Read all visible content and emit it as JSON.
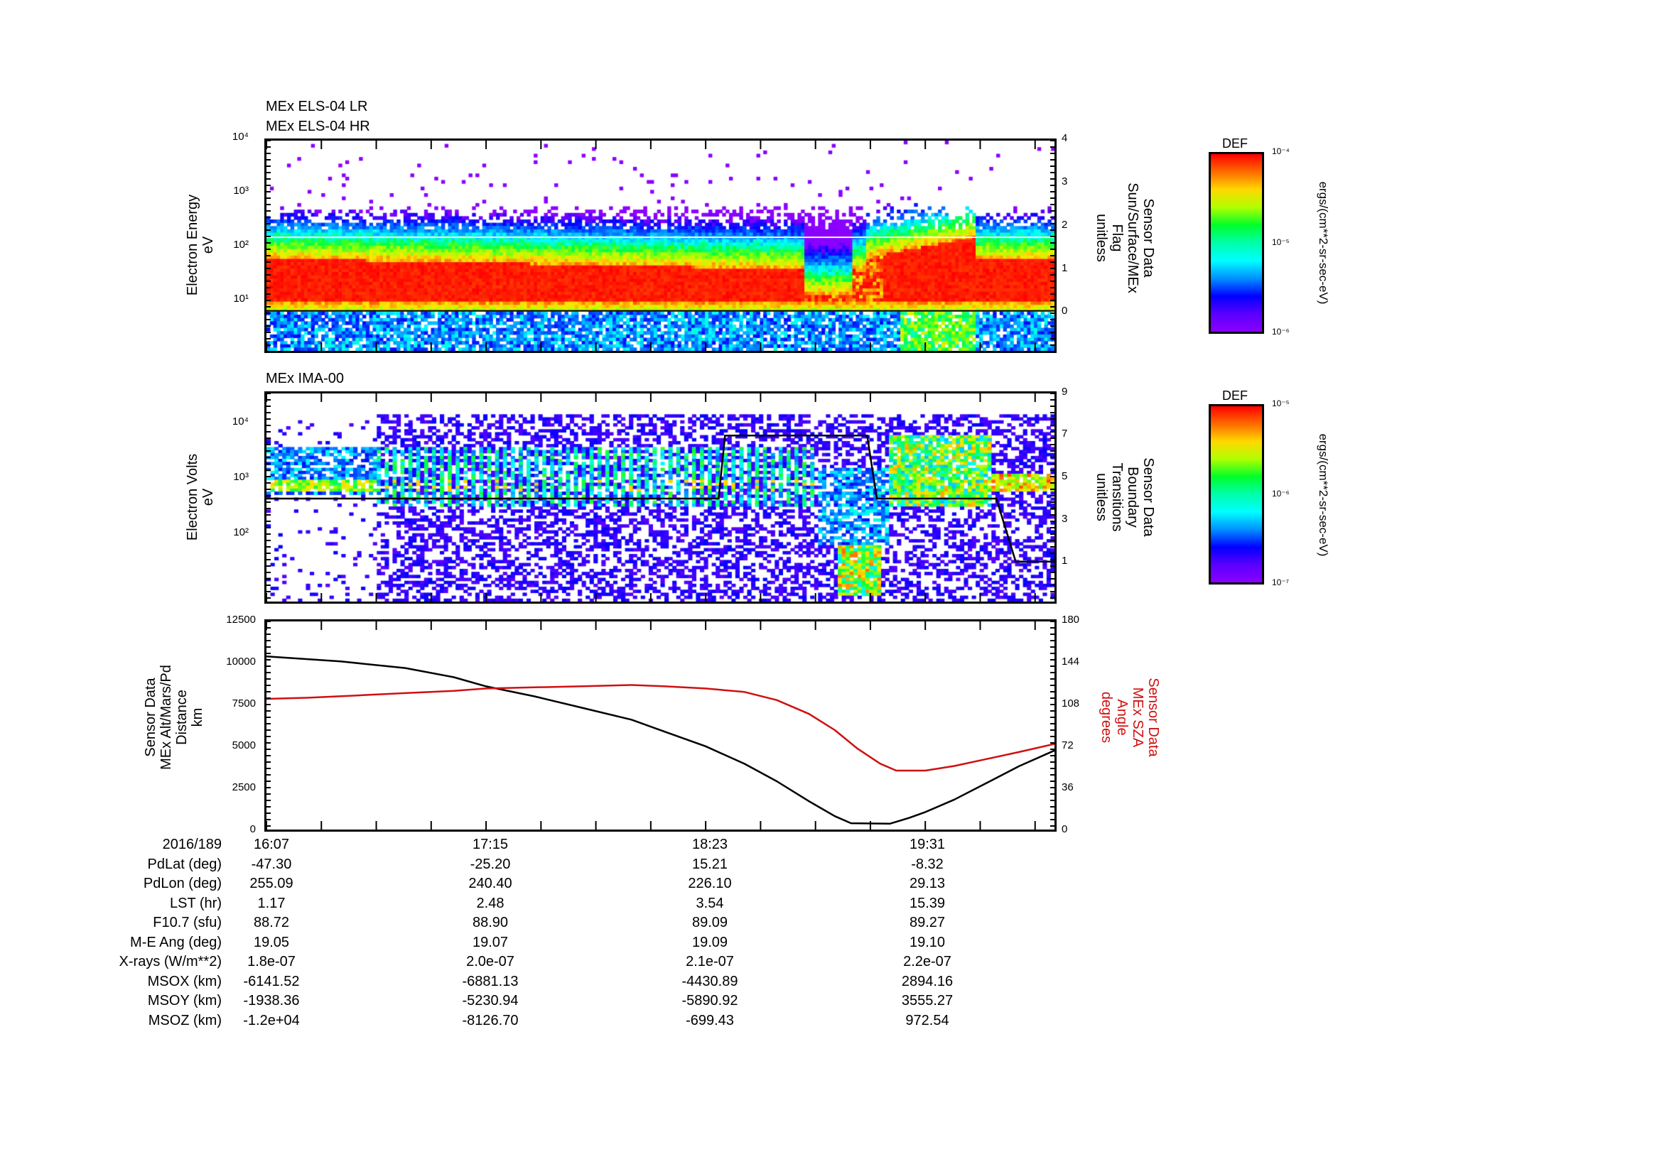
{
  "panel1": {
    "titles": [
      "MEx ELS-04 LR",
      "MEx ELS-04 HR"
    ],
    "ylabel": [
      "Electron Energy",
      "eV"
    ],
    "yticks": [
      "10⁴",
      "10³",
      "10²",
      "10¹"
    ],
    "ylabel_right": [
      "Sensor Data",
      "Sun/Surface/MEx",
      "Flag",
      "unitless"
    ],
    "yticks_right": [
      "4",
      "3",
      "2",
      "1",
      "0"
    ],
    "colorbar": {
      "title": "DEF",
      "ticks": [
        "10⁻⁴",
        "10⁻⁵",
        "10⁻⁶"
      ],
      "units": "ergs/(cm**2-sr-sec-eV)"
    }
  },
  "panel2": {
    "title": "MEx IMA-00",
    "ylabel": [
      "Electron Volts",
      "eV"
    ],
    "yticks": [
      "10⁴",
      "10³",
      "10²"
    ],
    "ylabel_right": [
      "Sensor Data",
      "Boundary",
      "Transitions",
      "unitless"
    ],
    "yticks_right": [
      "9",
      "7",
      "5",
      "3",
      "1"
    ],
    "colorbar": {
      "title": "DEF",
      "ticks": [
        "10⁻⁵",
        "10⁻⁶",
        "10⁻⁷"
      ],
      "units": "ergs/(cm**2-sr-sec-eV)"
    }
  },
  "panel3": {
    "ylabel": [
      "Sensor Data",
      "MEx Alt/Mars/Pd",
      "Distance",
      "km"
    ],
    "yticks": [
      "12500",
      "10000",
      "7500",
      "5000",
      "2500",
      "0"
    ],
    "ylabel_right": [
      "Sensor Data",
      "MEx SZA",
      "Angle",
      "degrees"
    ],
    "yticks_right": [
      "180",
      "144",
      "108",
      "72",
      "36",
      "0"
    ]
  },
  "colors": {
    "altitude": "#000000",
    "sza": "#d01010"
  },
  "chart_data": [
    {
      "type": "heatmap",
      "title": "MEx ELS-04 LR / MEx ELS-04 HR",
      "ylabel": "Electron Energy (eV)",
      "yscale": "log",
      "ylim": [
        1.1,
        10000
      ],
      "xlim": [
        "16:07",
        "20:11"
      ],
      "colorbar": {
        "label": "DEF ergs/(cm**2-sr-sec-eV)",
        "range": [
          1e-06,
          0.0001
        ],
        "scale": "log"
      },
      "overlay": {
        "name": "Sun/Surface/MEx Flag",
        "ylim_right": [
          -0.94,
          4
        ],
        "values": [
          {
            "t": "16:07",
            "v": 0
          },
          {
            "t": "20:11",
            "v": 0
          }
        ]
      }
    },
    {
      "type": "heatmap",
      "title": "MEx IMA-00",
      "ylabel": "Electron Volts (eV)",
      "yscale": "log",
      "ylim": [
        6,
        36000
      ],
      "xlim": [
        "16:07",
        "20:11"
      ],
      "colorbar": {
        "label": "DEF ergs/(cm**2-sr-sec-eV)",
        "range": [
          1e-07,
          1e-05
        ],
        "scale": "log"
      },
      "overlay": {
        "name": "Boundary Transitions",
        "ylim_right": [
          -0.9,
          9
        ],
        "points": [
          [
            "16:07",
            4
          ],
          [
            "18:27",
            4
          ],
          [
            "18:29",
            7
          ],
          [
            "19:13",
            7
          ],
          [
            "19:16",
            4
          ],
          [
            "19:53",
            4
          ],
          [
            "19:59",
            1
          ],
          [
            "20:11",
            1
          ]
        ]
      }
    },
    {
      "type": "line",
      "xlabel": "",
      "xticks": [
        "16:07",
        "17:15",
        "18:23",
        "19:31"
      ],
      "ylabel": "MEx Alt/Mars/Pd Distance (km)",
      "ylim": [
        0,
        12500
      ],
      "ylabel_right": "MEx SZA Angle (degrees)",
      "ylim_right": [
        0,
        180
      ],
      "series": [
        {
          "name": "MEx Alt/Mars/Pd Distance",
          "axis": "left",
          "unit": "km",
          "points": [
            [
              "16:07",
              10400
            ],
            [
              "16:30",
              10100
            ],
            [
              "16:50",
              9700
            ],
            [
              "17:05",
              9150
            ],
            [
              "17:15",
              8600
            ],
            [
              "17:30",
              8000
            ],
            [
              "17:45",
              7300
            ],
            [
              "18:00",
              6600
            ],
            [
              "18:10",
              5900
            ],
            [
              "18:23",
              5000
            ],
            [
              "18:35",
              3950
            ],
            [
              "18:45",
              2900
            ],
            [
              "18:55",
              1700
            ],
            [
              "19:03",
              800
            ],
            [
              "19:08",
              380
            ],
            [
              "19:20",
              350
            ],
            [
              "19:26",
              700
            ],
            [
              "19:31",
              1050
            ],
            [
              "19:40",
              1800
            ],
            [
              "19:50",
              2800
            ],
            [
              "20:00",
              3800
            ],
            [
              "20:11",
              4750
            ]
          ]
        },
        {
          "name": "MEx SZA Angle",
          "axis": "right",
          "unit": "degrees",
          "points": [
            [
              "16:07",
              113
            ],
            [
              "16:20",
              114
            ],
            [
              "16:35",
              116
            ],
            [
              "16:50",
              118
            ],
            [
              "17:05",
              120
            ],
            [
              "17:15",
              122
            ],
            [
              "17:30",
              123
            ],
            [
              "17:45",
              124
            ],
            [
              "18:00",
              125
            ],
            [
              "18:10",
              124
            ],
            [
              "18:23",
              122
            ],
            [
              "18:35",
              119
            ],
            [
              "18:45",
              112
            ],
            [
              "18:55",
              100
            ],
            [
              "19:03",
              86
            ],
            [
              "19:10",
              70
            ],
            [
              "19:17",
              57
            ],
            [
              "19:22",
              51
            ],
            [
              "19:31",
              51
            ],
            [
              "19:40",
              55
            ],
            [
              "19:50",
              61
            ],
            [
              "20:00",
              67
            ],
            [
              "20:11",
              74
            ]
          ]
        }
      ]
    }
  ],
  "table": {
    "rows": [
      {
        "label": "2016/189",
        "values": [
          "16:07",
          "17:15",
          "18:23",
          "19:31"
        ]
      },
      {
        "label": "PdLat (deg)",
        "values": [
          "-47.30",
          "-25.20",
          "15.21",
          "-8.32"
        ]
      },
      {
        "label": "PdLon (deg)",
        "values": [
          "255.09",
          "240.40",
          "226.10",
          "29.13"
        ]
      },
      {
        "label": "LST (hr)",
        "values": [
          "1.17",
          "2.48",
          "3.54",
          "15.39"
        ]
      },
      {
        "label": "F10.7 (sfu)",
        "values": [
          "88.72",
          "88.90",
          "89.09",
          "89.27"
        ]
      },
      {
        "label": "M-E Ang (deg)",
        "values": [
          "19.05",
          "19.07",
          "19.09",
          "19.10"
        ]
      },
      {
        "label": "X-rays (W/m**2)",
        "values": [
          "1.8e-07",
          "2.0e-07",
          "2.1e-07",
          "2.2e-07"
        ]
      },
      {
        "label": "MSOX (km)",
        "values": [
          "-6141.52",
          "-6881.13",
          "-4430.89",
          "2894.16"
        ]
      },
      {
        "label": "MSOY (km)",
        "values": [
          "-1938.36",
          "-5230.94",
          "-5890.92",
          "3555.27"
        ]
      },
      {
        "label": "MSOZ (km)",
        "values": [
          "-1.2e+04",
          "-8126.70",
          "-699.43",
          "972.54"
        ]
      }
    ]
  }
}
